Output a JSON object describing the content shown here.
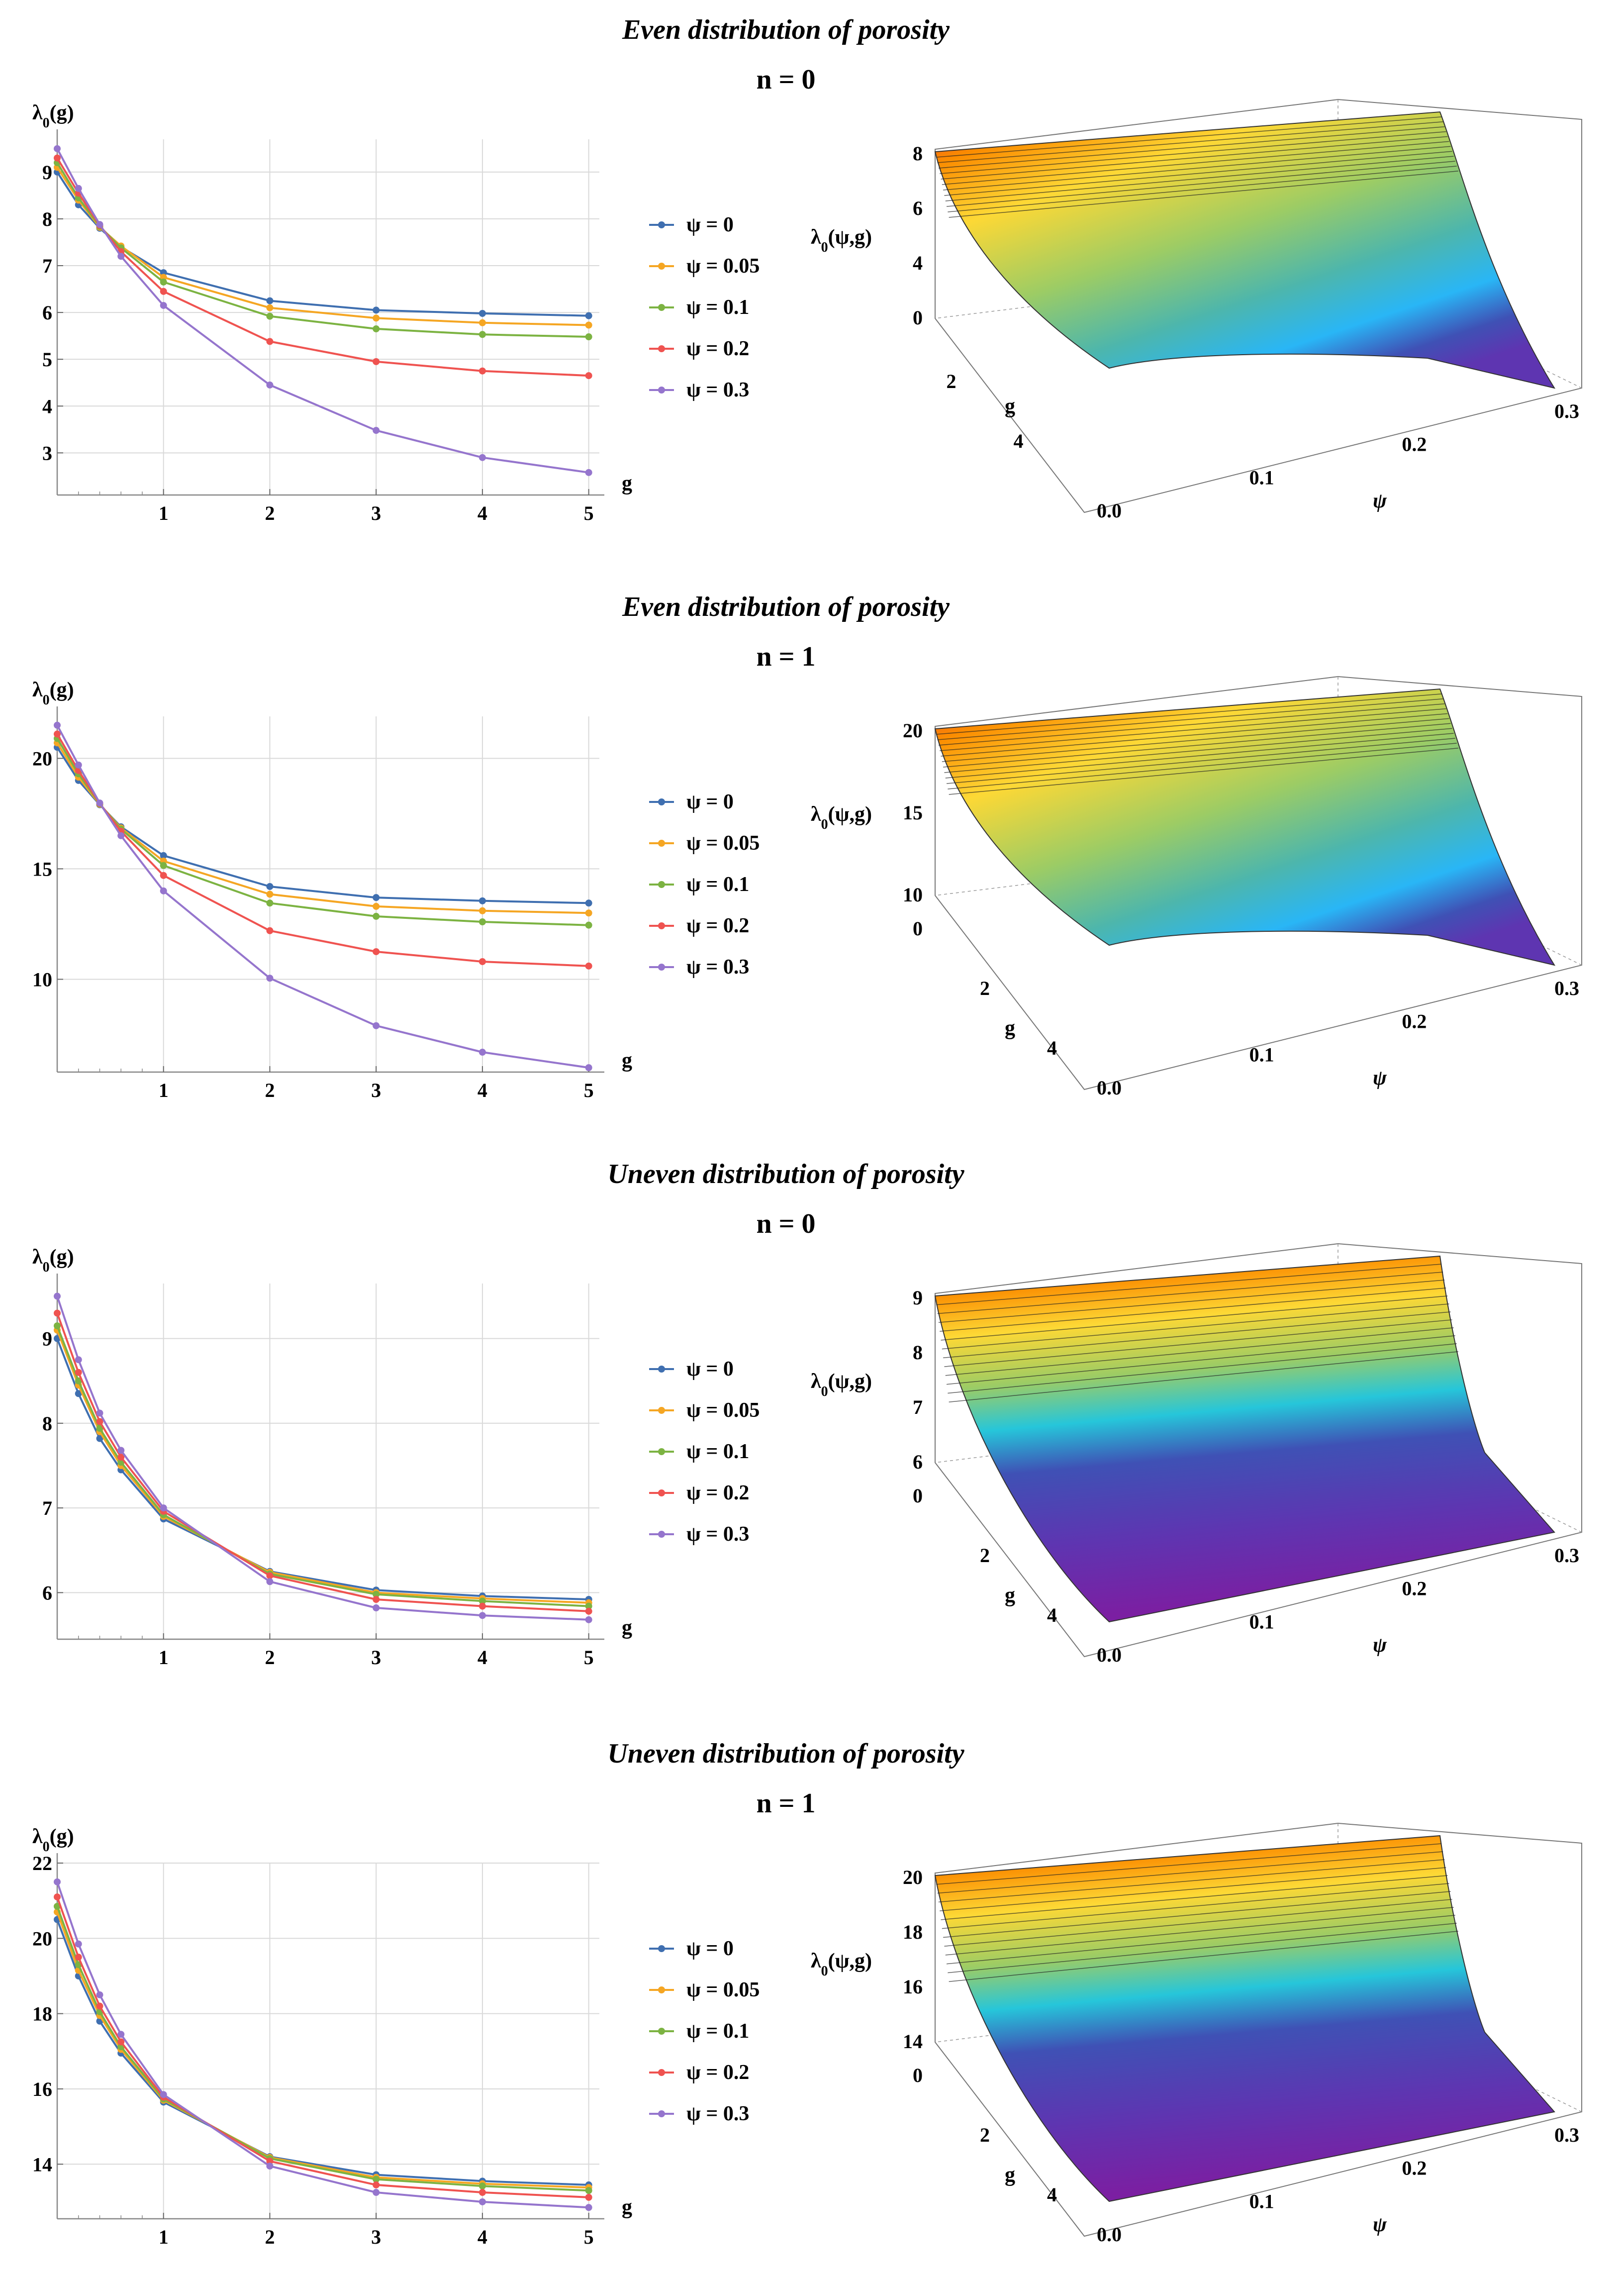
{
  "chart_data": [
    {
      "type": "line",
      "title": "Even distribution of porosity",
      "subtitle": "n = 0",
      "xlabel": "g",
      "ylabel": "λ0(g)",
      "x": [
        0,
        0.2,
        0.4,
        0.6,
        1,
        2,
        3,
        4,
        5
      ],
      "xticks": [
        "1",
        "2",
        "3",
        "4",
        "5"
      ],
      "yticks": [
        "3",
        "4",
        "5",
        "6",
        "7",
        "8",
        "9"
      ],
      "xlim": [
        0,
        5.1
      ],
      "ylim": [
        2.1,
        9.7
      ],
      "legend_position": "right",
      "series": [
        {
          "name": "ψ = 0",
          "color": "#3f6fb0",
          "values": [
            9.0,
            8.3,
            7.8,
            7.4,
            6.85,
            6.25,
            6.05,
            5.98,
            5.93
          ]
        },
        {
          "name": "ψ = 0.05",
          "color": "#f5a623",
          "values": [
            9.1,
            8.4,
            7.82,
            7.42,
            6.75,
            6.1,
            5.88,
            5.78,
            5.73
          ]
        },
        {
          "name": "ψ = 0.1",
          "color": "#7cb342",
          "values": [
            9.2,
            8.45,
            7.84,
            7.38,
            6.65,
            5.92,
            5.65,
            5.53,
            5.48
          ]
        },
        {
          "name": "ψ = 0.2",
          "color": "#ef5350",
          "values": [
            9.3,
            8.55,
            7.86,
            7.3,
            6.45,
            5.38,
            4.95,
            4.75,
            4.65
          ]
        },
        {
          "name": "ψ = 0.3",
          "color": "#9575cd",
          "values": [
            9.5,
            8.65,
            7.88,
            7.2,
            6.15,
            4.45,
            3.48,
            2.9,
            2.58
          ]
        }
      ],
      "surface": {
        "zlabel": "λ0(ψ,g)",
        "xlabel": "ψ",
        "ylabel": "g",
        "psi_ticks": [
          "0.0",
          "0.1",
          "0.2",
          "0.3"
        ],
        "g_ticks": [
          "2",
          "4"
        ],
        "z_ticks": [
          "0",
          "4",
          "6",
          "8"
        ]
      }
    },
    {
      "type": "line",
      "title": "Even distribution of porosity",
      "subtitle": "n = 1",
      "xlabel": "g",
      "ylabel": "λ0(g)",
      "x": [
        0,
        0.2,
        0.4,
        0.6,
        1,
        2,
        3,
        4,
        5
      ],
      "xticks": [
        "1",
        "2",
        "3",
        "4",
        "5"
      ],
      "yticks": [
        "10",
        "15",
        "20"
      ],
      "xlim": [
        0,
        5.1
      ],
      "ylim": [
        5.8,
        21.9
      ],
      "legend_position": "right",
      "series": [
        {
          "name": "ψ = 0",
          "color": "#3f6fb0",
          "values": [
            20.5,
            19.0,
            17.9,
            16.9,
            15.6,
            14.2,
            13.7,
            13.55,
            13.45
          ]
        },
        {
          "name": "ψ = 0.05",
          "color": "#f5a623",
          "values": [
            20.7,
            19.15,
            17.92,
            16.85,
            15.35,
            13.85,
            13.3,
            13.1,
            13.0
          ]
        },
        {
          "name": "ψ = 0.1",
          "color": "#7cb342",
          "values": [
            20.9,
            19.3,
            17.94,
            16.8,
            15.15,
            13.45,
            12.85,
            12.6,
            12.45
          ]
        },
        {
          "name": "ψ = 0.2",
          "color": "#ef5350",
          "values": [
            21.1,
            19.45,
            17.96,
            16.7,
            14.7,
            12.2,
            11.25,
            10.8,
            10.6
          ]
        },
        {
          "name": "ψ = 0.3",
          "color": "#9575cd",
          "values": [
            21.5,
            19.7,
            17.98,
            16.5,
            14.0,
            10.05,
            7.9,
            6.7,
            6.0
          ]
        }
      ],
      "surface": {
        "zlabel": "λ0(ψ,g)",
        "xlabel": "ψ",
        "ylabel": "g",
        "psi_ticks": [
          "0.0",
          "0.1",
          "0.2",
          "0.3"
        ],
        "g_ticks": [
          "0",
          "2",
          "4"
        ],
        "z_ticks": [
          "10",
          "15",
          "20"
        ]
      }
    },
    {
      "type": "line",
      "title": "Uneven distribution of porosity",
      "subtitle": "n = 0",
      "xlabel": "g",
      "ylabel": "λ0(g)",
      "x": [
        0,
        0.2,
        0.4,
        0.6,
        1,
        2,
        3,
        4,
        5
      ],
      "xticks": [
        "1",
        "2",
        "3",
        "4",
        "5"
      ],
      "yticks": [
        "6",
        "7",
        "8",
        "9"
      ],
      "xlim": [
        0,
        5.1
      ],
      "ylim": [
        5.45,
        9.65
      ],
      "legend_position": "right",
      "series": [
        {
          "name": "ψ = 0",
          "color": "#3f6fb0",
          "values": [
            9.0,
            8.35,
            7.82,
            7.45,
            6.87,
            6.25,
            6.03,
            5.96,
            5.92
          ]
        },
        {
          "name": "ψ = 0.05",
          "color": "#f5a623",
          "values": [
            9.1,
            8.45,
            7.9,
            7.5,
            6.9,
            6.24,
            6.0,
            5.93,
            5.88
          ]
        },
        {
          "name": "ψ = 0.1",
          "color": "#7cb342",
          "values": [
            9.15,
            8.5,
            7.94,
            7.54,
            6.92,
            6.22,
            5.98,
            5.9,
            5.84
          ]
        },
        {
          "name": "ψ = 0.2",
          "color": "#ef5350",
          "values": [
            9.3,
            8.6,
            8.02,
            7.6,
            6.96,
            6.2,
            5.92,
            5.84,
            5.78
          ]
        },
        {
          "name": "ψ = 0.3",
          "color": "#9575cd",
          "values": [
            9.5,
            8.75,
            8.12,
            7.68,
            7.0,
            6.13,
            5.82,
            5.73,
            5.68
          ]
        }
      ],
      "surface": {
        "zlabel": "λ0(ψ,g)",
        "xlabel": "ψ",
        "ylabel": "g",
        "psi_ticks": [
          "0.0",
          "0.1",
          "0.2",
          "0.3"
        ],
        "g_ticks": [
          "0",
          "2",
          "4"
        ],
        "z_ticks": [
          "6",
          "7",
          "8",
          "9"
        ]
      }
    },
    {
      "type": "line",
      "title": "Uneven distribution of porosity",
      "subtitle": "n = 1",
      "xlabel": "g",
      "ylabel": "λ0(g)",
      "x": [
        0,
        0.2,
        0.4,
        0.6,
        1,
        2,
        3,
        4,
        5
      ],
      "xticks": [
        "1",
        "2",
        "3",
        "4",
        "5"
      ],
      "yticks": [
        "14",
        "16",
        "18",
        "20",
        "22"
      ],
      "xlim": [
        0,
        5.1
      ],
      "ylim": [
        12.55,
        22.0
      ],
      "legend_position": "right",
      "series": [
        {
          "name": "ψ = 0",
          "color": "#3f6fb0",
          "values": [
            20.5,
            19.0,
            17.8,
            16.95,
            15.65,
            14.2,
            13.72,
            13.55,
            13.45
          ]
        },
        {
          "name": "ψ = 0.05",
          "color": "#f5a623",
          "values": [
            20.7,
            19.15,
            17.95,
            17.05,
            15.7,
            14.18,
            13.65,
            13.48,
            13.38
          ]
        },
        {
          "name": "ψ = 0.1",
          "color": "#7cb342",
          "values": [
            20.85,
            19.3,
            18.05,
            17.12,
            15.73,
            14.15,
            13.6,
            13.42,
            13.3
          ]
        },
        {
          "name": "ψ = 0.2",
          "color": "#ef5350",
          "values": [
            21.1,
            19.5,
            18.2,
            17.25,
            15.78,
            14.08,
            13.45,
            13.25,
            13.12
          ]
        },
        {
          "name": "ψ = 0.3",
          "color": "#9575cd",
          "values": [
            21.5,
            19.85,
            18.5,
            17.45,
            15.85,
            13.95,
            13.25,
            13.0,
            12.85
          ]
        }
      ],
      "surface": {
        "zlabel": "λ0(ψ,g)",
        "xlabel": "ψ",
        "ylabel": "g",
        "psi_ticks": [
          "0.0",
          "0.1",
          "0.2",
          "0.3"
        ],
        "g_ticks": [
          "0",
          "2",
          "4"
        ],
        "z_ticks": [
          "14",
          "16",
          "18",
          "20"
        ]
      }
    }
  ]
}
